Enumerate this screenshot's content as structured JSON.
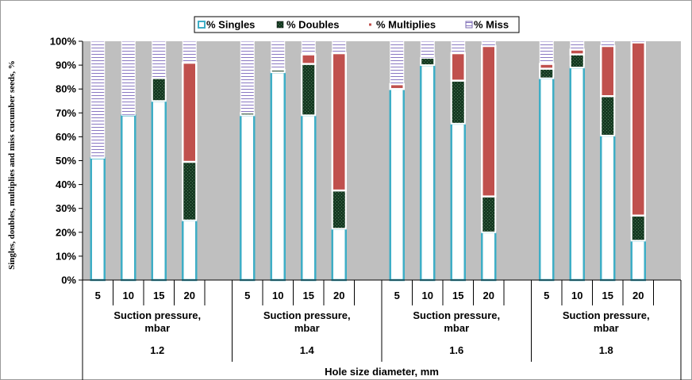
{
  "chart_data": {
    "type": "bar",
    "stacked": true,
    "ylabel": "Singles, doubles, multiplies and miss cucumber seeds, %",
    "xlabel": "Hole size diameter, mm",
    "ylim": [
      0,
      100
    ],
    "yticks": [
      "0%",
      "10%",
      "20%",
      "30%",
      "40%",
      "50%",
      "60%",
      "70%",
      "80%",
      "90%",
      "100%"
    ],
    "grid": false,
    "legend_position": "top",
    "legend": [
      {
        "name": "% Singles",
        "color": "#3eaec6",
        "pattern": "outline"
      },
      {
        "name": "% Doubles",
        "color": "#1e4d2b",
        "pattern": "dots"
      },
      {
        "name": "% Multiplies",
        "color": "#c0504d",
        "pattern": "solid"
      },
      {
        "name": "% Miss",
        "color": "#7b6bb0",
        "pattern": "horizontal-stripes"
      }
    ],
    "groups": [
      {
        "hole": "1.2",
        "sub_label": "Suction pressure, mbar",
        "pressures": [
          "5",
          "10",
          "15",
          "20"
        ],
        "singles": [
          51,
          69,
          75,
          25
        ],
        "doubles": [
          0,
          0,
          9.5,
          24.5
        ],
        "multiplies": [
          0,
          0,
          0,
          41.5
        ],
        "miss": [
          49,
          31,
          15.5,
          9
        ]
      },
      {
        "hole": "1.4",
        "sub_label": "Suction pressure, mbar",
        "pressures": [
          "5",
          "10",
          "15",
          "20"
        ],
        "singles": [
          69,
          87,
          69,
          21.5
        ],
        "doubles": [
          1,
          1,
          21.5,
          16
        ],
        "multiplies": [
          0,
          0,
          4,
          57.5
        ],
        "miss": [
          30,
          12,
          5.5,
          5
        ]
      },
      {
        "hole": "1.6",
        "sub_label": "Suction pressure, mbar",
        "pressures": [
          "5",
          "10",
          "15",
          "20"
        ],
        "singles": [
          80,
          90,
          65.5,
          20
        ],
        "doubles": [
          0,
          3,
          18,
          15
        ],
        "multiplies": [
          2,
          0,
          11.5,
          63
        ],
        "miss": [
          18,
          7,
          5,
          2
        ]
      },
      {
        "hole": "1.8",
        "sub_label": "Suction pressure, mbar",
        "pressures": [
          "5",
          "10",
          "15",
          "20"
        ],
        "singles": [
          84.5,
          89,
          60.5,
          16.5
        ],
        "doubles": [
          4,
          5.5,
          16.5,
          10.5
        ],
        "multiplies": [
          2,
          2,
          21,
          72.5
        ],
        "miss": [
          9.5,
          3.5,
          2,
          0.5
        ]
      }
    ]
  }
}
